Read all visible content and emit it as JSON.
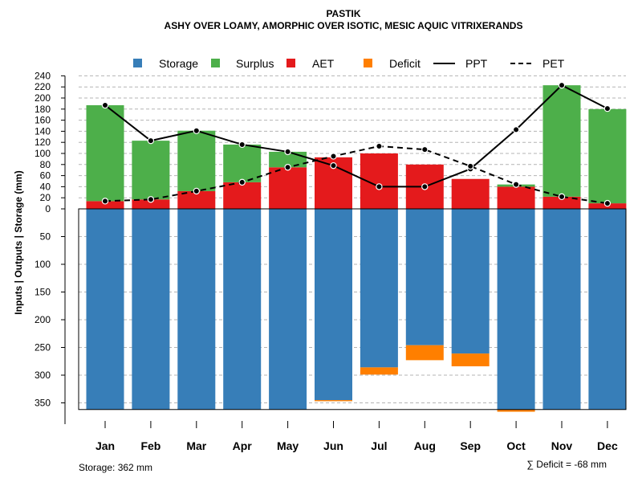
{
  "chart_data": {
    "type": "bar",
    "title": "PASTIK",
    "subtitle": "ASHY OVER LOAMY, AMORPHIC OVER ISOTIC, MESIC AQUIC VITRIXERANDS",
    "ylabel": "Inputs | Outputs | Storage     (mm)",
    "categories": [
      "Jan",
      "Feb",
      "Mar",
      "Apr",
      "May",
      "Jun",
      "Jul",
      "Aug",
      "Sep",
      "Oct",
      "Nov",
      "Dec"
    ],
    "legend": [
      "Storage",
      "Surplus",
      "AET",
      "Deficit",
      "PPT",
      "PET"
    ],
    "colors": {
      "storage": "#377EB8",
      "surplus": "#4DAF4A",
      "aet": "#E41A1C",
      "deficit": "#FF7F00"
    },
    "upper_ticks": [
      0,
      20,
      40,
      60,
      80,
      100,
      120,
      140,
      160,
      180,
      200,
      220,
      240
    ],
    "lower_ticks": [
      50,
      100,
      150,
      200,
      250,
      300,
      350
    ],
    "series": [
      {
        "name": "AET",
        "values": [
          14,
          17,
          32,
          48,
          75,
          93,
          100,
          80,
          54,
          40,
          22,
          10
        ]
      },
      {
        "name": "Surplus",
        "values": [
          173,
          106,
          109,
          68,
          28,
          0,
          0,
          0,
          0,
          4,
          201,
          170
        ]
      },
      {
        "name": "Storage",
        "values": [
          362,
          362,
          362,
          362,
          362,
          345,
          286,
          246,
          261,
          362,
          362,
          362
        ]
      },
      {
        "name": "Deficit",
        "values": [
          0,
          0,
          0,
          0,
          0,
          2,
          13,
          27,
          23,
          4,
          0,
          0
        ]
      },
      {
        "name": "PPT",
        "values": [
          187,
          123,
          141,
          116,
          103,
          78,
          40,
          40,
          72,
          143,
          223,
          181
        ]
      },
      {
        "name": "PET",
        "values": [
          14,
          17,
          32,
          48,
          75,
          95,
          113,
          107,
          77,
          44,
          22,
          10
        ]
      }
    ],
    "storage_label": "Storage: 362 mm",
    "deficit_label": "∑ Deficit = -68 mm"
  }
}
